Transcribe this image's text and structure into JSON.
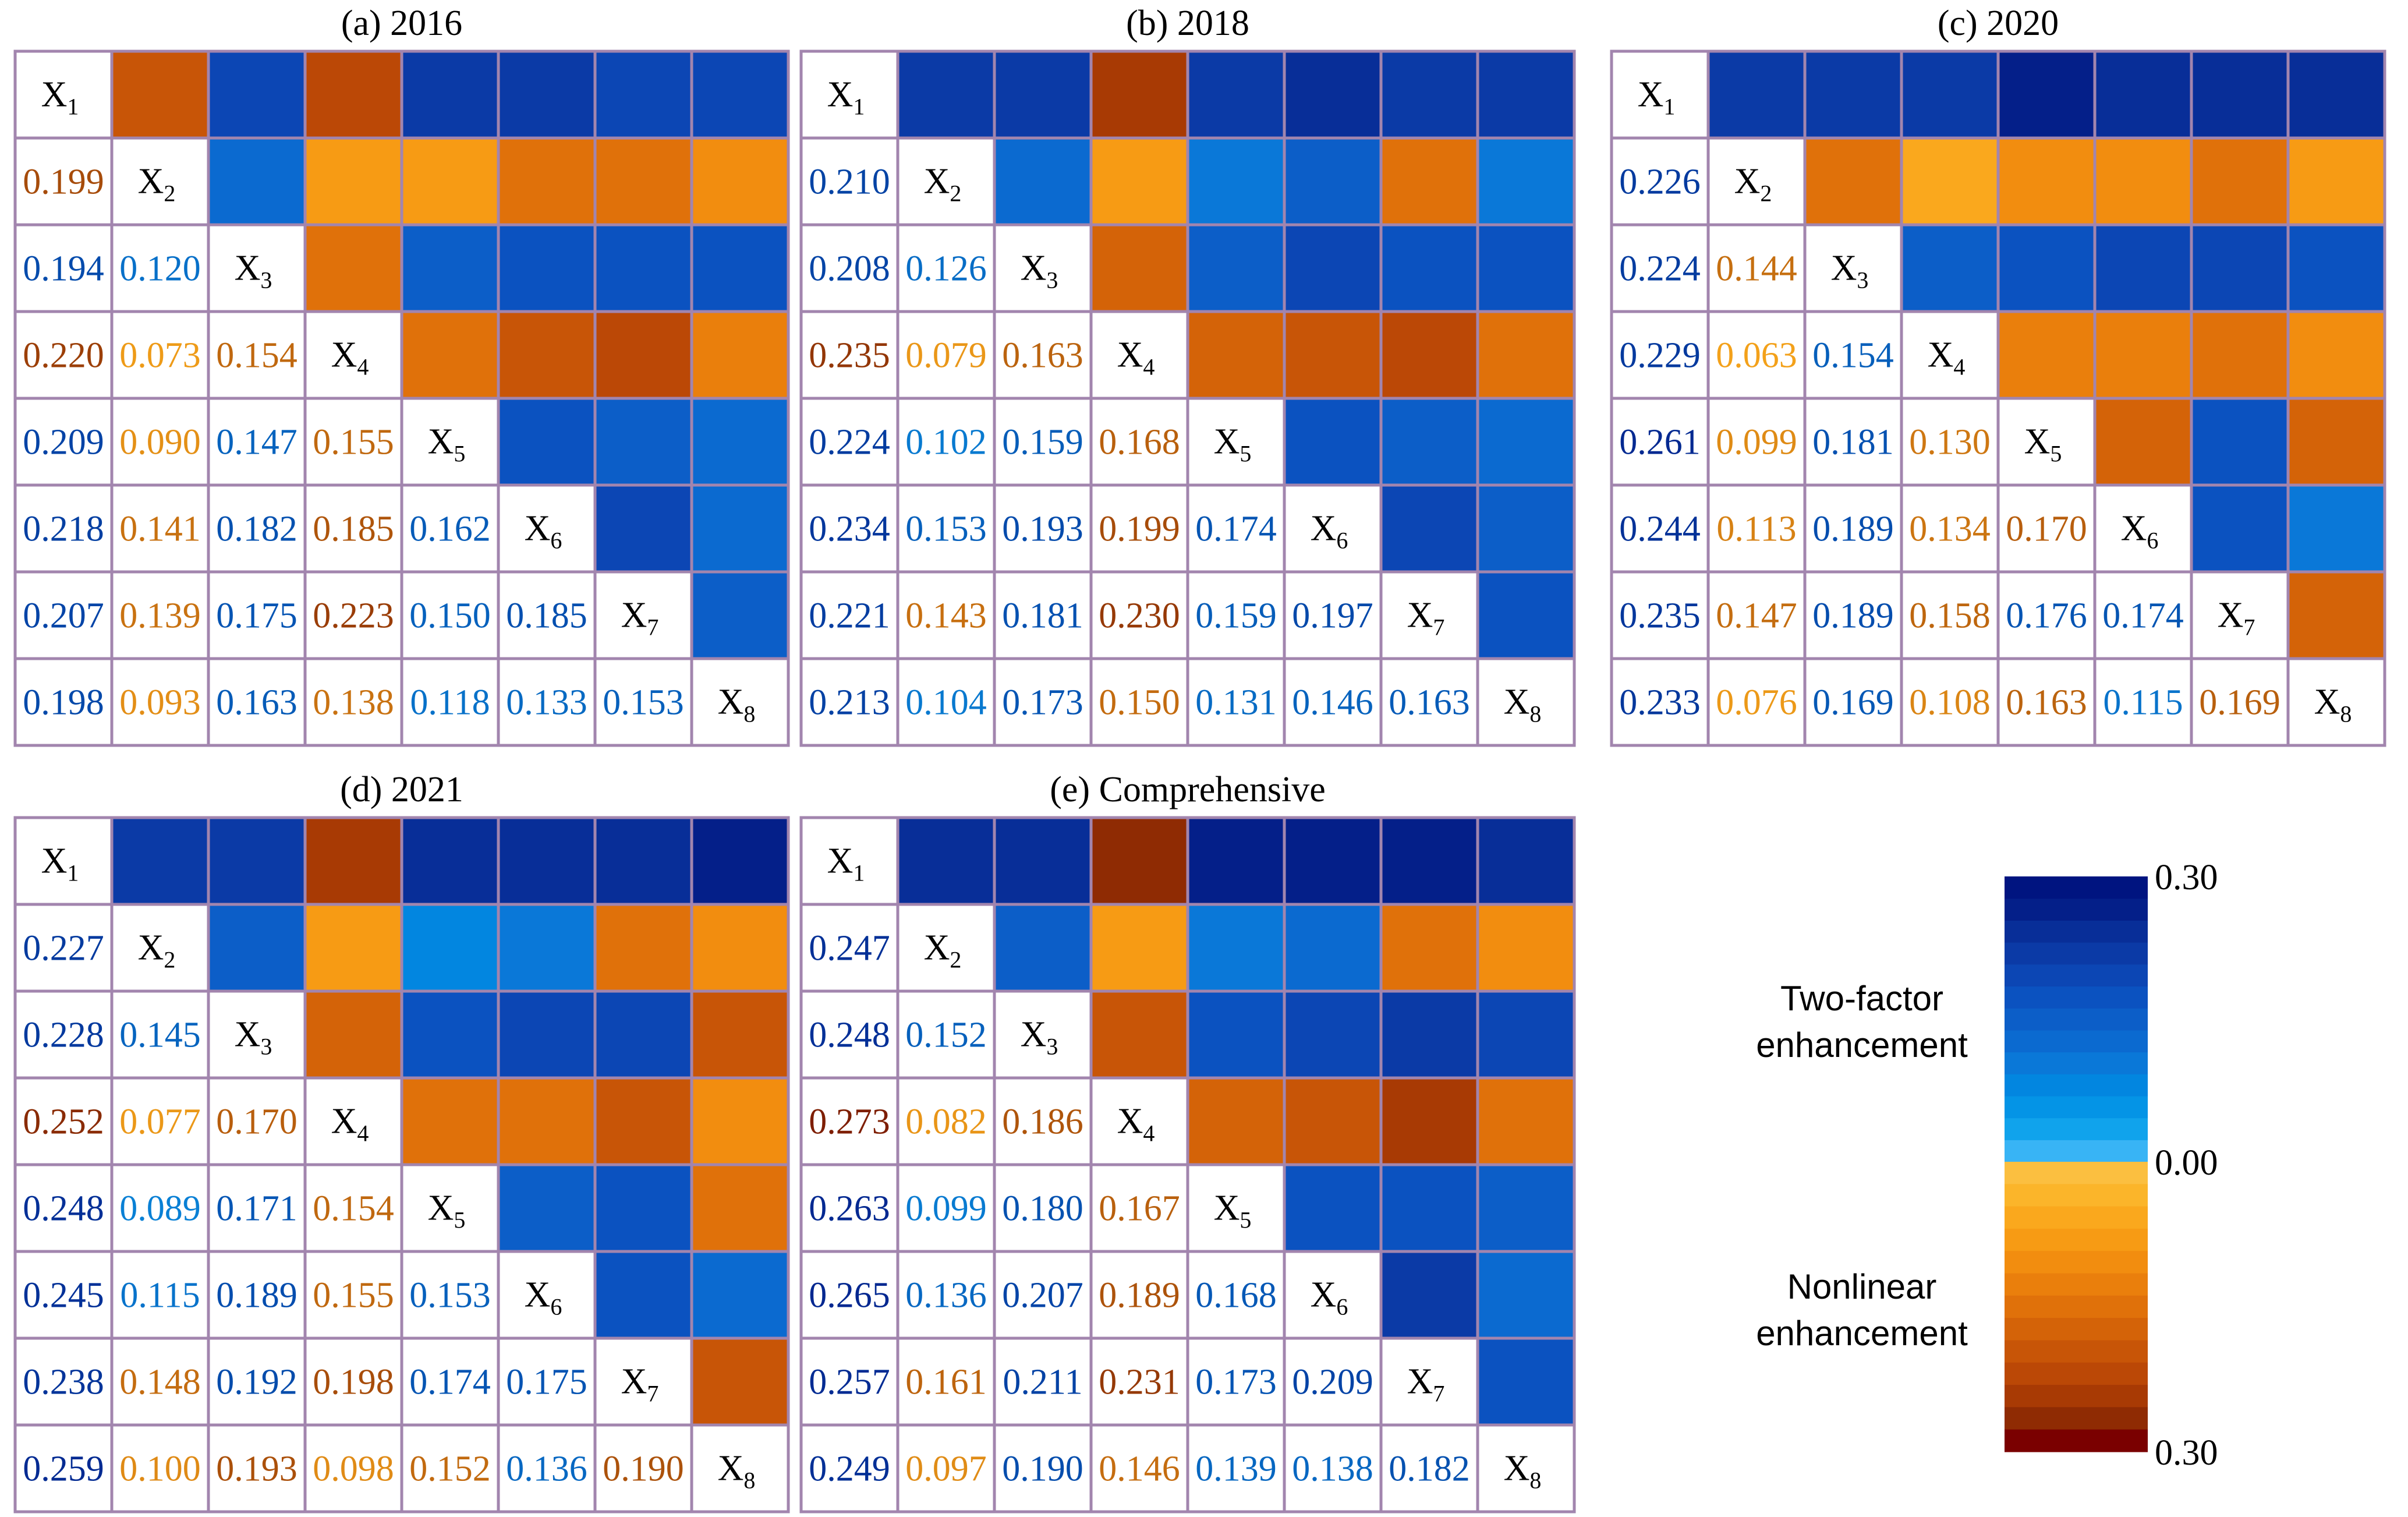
{
  "colors": {
    "neg_scale": [
      "#fbbf40",
      "#fbb52a",
      "#faa81d",
      "#f79b14",
      "#f28d0f",
      "#ea7f0c",
      "#e0710a",
      "#d46308",
      "#c85507",
      "#bb4806",
      "#a83a04",
      "#8f2b03",
      "#7a0000"
    ],
    "pos_scale": [
      "#38b4f5",
      "#10a3ec",
      "#0494e6",
      "#0286e0",
      "#0a78d8",
      "#0b6ad0",
      "#0c5ec8",
      "#0b52c0",
      "#0c46b4",
      "#0b3aa6",
      "#082e98",
      "#041f89",
      "#001480"
    ],
    "cell_border": "#a285ae",
    "text_nonlinear_light": "#f5a31a",
    "text_nonlinear_dark": "#7a1a00",
    "text_twofactor_light": "#0a8fe0",
    "text_twofactor_dark": "#001f8a"
  },
  "chart_data": {
    "type": "heatmap",
    "scale": {
      "min": 0.0,
      "max": 0.3
    },
    "colorbar": {
      "top_label": "0.30",
      "mid_label": "0.00",
      "bottom_label": "0.30",
      "upper_text_line1": "Two-factor",
      "upper_text_line2": "enhancement",
      "lower_text_line1": "Nonlinear",
      "lower_text_line2": "enhancement"
    },
    "factor_labels": [
      {
        "base": "X",
        "sub": "1"
      },
      {
        "base": "X",
        "sub": "2"
      },
      {
        "base": "X",
        "sub": "3"
      },
      {
        "base": "X",
        "sub": "4"
      },
      {
        "base": "X",
        "sub": "5"
      },
      {
        "base": "X",
        "sub": "6"
      },
      {
        "base": "X",
        "sub": "7"
      },
      {
        "base": "X",
        "sub": "8"
      }
    ],
    "panels": [
      {
        "title": "(a) 2016",
        "values": [
          [
            0.199,
            0.194,
            0.22,
            0.209,
            0.218,
            0.207,
            0.198
          ],
          [
            0.12,
            0.073,
            0.09,
            0.141,
            0.139,
            0.093
          ],
          [
            0.154,
            0.147,
            0.182,
            0.175,
            0.163
          ],
          [
            0.155,
            0.185,
            0.223,
            0.138
          ],
          [
            0.162,
            0.15,
            0.118
          ],
          [
            0.185,
            0.133
          ],
          [
            0.153
          ]
        ],
        "types": [
          [
            "n",
            "p",
            "n",
            "p",
            "p",
            "p",
            "p"
          ],
          [
            "p",
            "n",
            "n",
            "n",
            "n",
            "n"
          ],
          [
            "n",
            "p",
            "p",
            "p",
            "p"
          ],
          [
            "n",
            "n",
            "n",
            "n"
          ],
          [
            "p",
            "p",
            "p"
          ],
          [
            "p",
            "p"
          ],
          [
            "p"
          ]
        ]
      },
      {
        "title": "(b) 2018",
        "values": [
          [
            0.21,
            0.208,
            0.235,
            0.224,
            0.234,
            0.221,
            0.213
          ],
          [
            0.126,
            0.079,
            0.102,
            0.153,
            0.143,
            0.104
          ],
          [
            0.163,
            0.159,
            0.193,
            0.181,
            0.173
          ],
          [
            0.168,
            0.199,
            0.23,
            0.15
          ],
          [
            0.174,
            0.159,
            0.131
          ],
          [
            0.197,
            0.146
          ],
          [
            0.163
          ]
        ],
        "types": [
          [
            "p",
            "p",
            "n",
            "p",
            "p",
            "p",
            "p"
          ],
          [
            "p",
            "n",
            "p",
            "p",
            "n",
            "p"
          ],
          [
            "n",
            "p",
            "p",
            "p",
            "p"
          ],
          [
            "n",
            "n",
            "n",
            "n"
          ],
          [
            "p",
            "p",
            "p"
          ],
          [
            "p",
            "p"
          ],
          [
            "p"
          ]
        ]
      },
      {
        "title": "(c) 2020",
        "values": [
          [
            0.226,
            0.224,
            0.229,
            0.261,
            0.244,
            0.235,
            0.233
          ],
          [
            0.144,
            0.063,
            0.099,
            0.113,
            0.147,
            0.076
          ],
          [
            0.154,
            0.181,
            0.189,
            0.189,
            0.169
          ],
          [
            0.13,
            0.134,
            0.158,
            0.108
          ],
          [
            0.17,
            0.176,
            0.163
          ],
          [
            0.174,
            0.115
          ],
          [
            0.169
          ]
        ],
        "types": [
          [
            "p",
            "p",
            "p",
            "p",
            "p",
            "p",
            "p"
          ],
          [
            "n",
            "n",
            "n",
            "n",
            "n",
            "n"
          ],
          [
            "p",
            "p",
            "p",
            "p",
            "p"
          ],
          [
            "n",
            "n",
            "n",
            "n"
          ],
          [
            "n",
            "p",
            "n"
          ],
          [
            "p",
            "p"
          ],
          [
            "n"
          ]
        ]
      },
      {
        "title": "(d) 2021",
        "values": [
          [
            0.227,
            0.228,
            0.252,
            0.248,
            0.245,
            0.238,
            0.259
          ],
          [
            0.145,
            0.077,
            0.089,
            0.115,
            0.148,
            0.1
          ],
          [
            0.17,
            0.171,
            0.189,
            0.192,
            0.193
          ],
          [
            0.154,
            0.155,
            0.198,
            0.098
          ],
          [
            0.153,
            0.174,
            0.152
          ],
          [
            0.175,
            0.136
          ],
          [
            0.19
          ]
        ],
        "types": [
          [
            "p",
            "p",
            "n",
            "p",
            "p",
            "p",
            "p"
          ],
          [
            "p",
            "n",
            "p",
            "p",
            "n",
            "n"
          ],
          [
            "n",
            "p",
            "p",
            "p",
            "n"
          ],
          [
            "n",
            "n",
            "n",
            "n"
          ],
          [
            "p",
            "p",
            "n"
          ],
          [
            "p",
            "p"
          ],
          [
            "n"
          ]
        ]
      },
      {
        "title": "(e) Comprehensive",
        "values": [
          [
            0.247,
            0.248,
            0.273,
            0.263,
            0.265,
            0.257,
            0.249
          ],
          [
            0.152,
            0.082,
            0.099,
            0.136,
            0.161,
            0.097
          ],
          [
            0.186,
            0.18,
            0.207,
            0.211,
            0.19
          ],
          [
            0.167,
            0.189,
            0.231,
            0.146
          ],
          [
            0.168,
            0.173,
            0.139
          ],
          [
            0.209,
            0.138
          ],
          [
            0.182
          ]
        ],
        "types": [
          [
            "p",
            "p",
            "n",
            "p",
            "p",
            "p",
            "p"
          ],
          [
            "p",
            "n",
            "p",
            "p",
            "n",
            "n"
          ],
          [
            "n",
            "p",
            "p",
            "p",
            "p"
          ],
          [
            "n",
            "n",
            "n",
            "n"
          ],
          [
            "p",
            "p",
            "p"
          ],
          [
            "p",
            "p"
          ],
          [
            "p"
          ]
        ]
      }
    ]
  }
}
